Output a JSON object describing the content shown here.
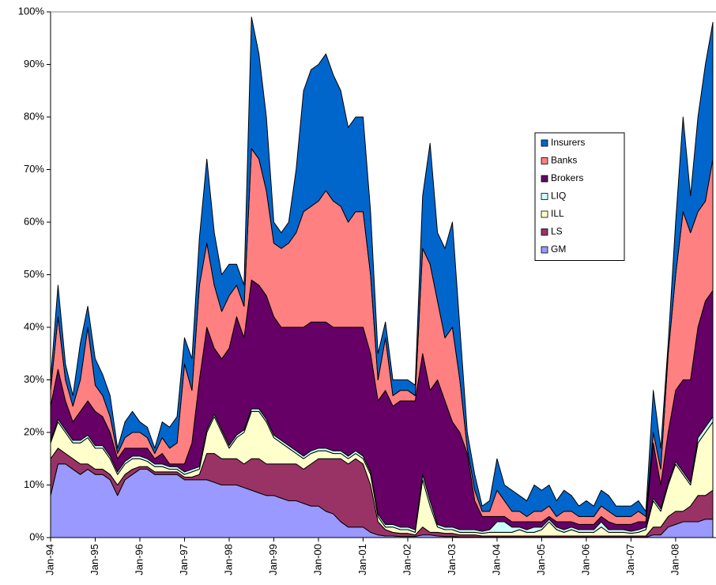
{
  "chart_data": {
    "type": "stacked_area",
    "categories": [
      "Jan-94",
      null,
      null,
      null,
      null,
      null,
      "Jan-95",
      null,
      null,
      null,
      null,
      null,
      "Jan-96",
      null,
      null,
      null,
      null,
      null,
      "Jan-97",
      null,
      null,
      null,
      null,
      null,
      "Jan-98",
      null,
      null,
      null,
      null,
      null,
      "Jan-99",
      null,
      null,
      null,
      null,
      null,
      "Jan-00",
      null,
      null,
      null,
      null,
      null,
      "Jan-01",
      null,
      null,
      null,
      null,
      null,
      "Jan-02",
      null,
      null,
      null,
      null,
      null,
      "Jan-03",
      null,
      null,
      null,
      null,
      null,
      "Jan-04",
      null,
      null,
      null,
      null,
      null,
      "Jan-05",
      null,
      null,
      null,
      null,
      null,
      "Jan-06",
      null,
      null,
      null,
      null,
      null,
      "Jan-07",
      null,
      null,
      null,
      null,
      null,
      "Jan-08",
      null,
      null,
      null,
      null,
      null
    ],
    "series": [
      {
        "name": "GM",
        "color": "#9999ff",
        "values": [
          8,
          14,
          14,
          13,
          12,
          13,
          12,
          12,
          11,
          8,
          11,
          12,
          13,
          13,
          12,
          12,
          12,
          12,
          11,
          11,
          11,
          11,
          10.5,
          10,
          10,
          10,
          9.5,
          9,
          8.5,
          8,
          8,
          7.5,
          7,
          7,
          6.5,
          6,
          6,
          5,
          4.5,
          3,
          2,
          2,
          2,
          1,
          0.5,
          0.3,
          0.3,
          0.2,
          0.2,
          0.2,
          0.5,
          0.5,
          0.3,
          0.2,
          0.2,
          0.1,
          0.1,
          0.1,
          0.1,
          0.1,
          0.1,
          0.1,
          0.1,
          0.1,
          0.1,
          0.1,
          0.1,
          0.1,
          0.1,
          0.1,
          0.1,
          0.1,
          0.1,
          0.1,
          0.1,
          0.1,
          0.1,
          0.1,
          0.1,
          0.1,
          0.1,
          0.5,
          0.5,
          2,
          2.5,
          3,
          3,
          3,
          3.5,
          3.5
        ]
      },
      {
        "name": "LS",
        "color": "#993366",
        "values": [
          7,
          3,
          2,
          2,
          2,
          1,
          1,
          1,
          1,
          2,
          1,
          1,
          0.5,
          0.5,
          0.5,
          0.5,
          0.5,
          0.5,
          0.5,
          0.5,
          1,
          5,
          5.5,
          5,
          5,
          5,
          4.5,
          6,
          6.5,
          6,
          6,
          6.5,
          7,
          7,
          6.5,
          8,
          9,
          10,
          10.5,
          12,
          12,
          13,
          12,
          9,
          2.5,
          1.2,
          0.7,
          0.6,
          0.6,
          0.3,
          1.5,
          0.5,
          0.7,
          0.6,
          0.6,
          0.4,
          0.4,
          0.4,
          0.2,
          0.2,
          0.2,
          0.2,
          0.2,
          0.2,
          0.2,
          0.2,
          0.2,
          0.2,
          0.2,
          0.2,
          0.2,
          0.2,
          0.2,
          0.2,
          0.2,
          0.2,
          0.2,
          0.2,
          0.2,
          0.2,
          0.2,
          1.5,
          1.5,
          2,
          2.5,
          2,
          3,
          5,
          4.5,
          5.5
        ]
      },
      {
        "name": "ILL",
        "color": "#ffffcc",
        "values": [
          3,
          5,
          4,
          3,
          4,
          5,
          4,
          4,
          3,
          2,
          2,
          2,
          1.5,
          1,
          1,
          1,
          0.5,
          0.5,
          0.5,
          1,
          1,
          4,
          7,
          5,
          2,
          4,
          6,
          9,
          9,
          8,
          5,
          4,
          3,
          2,
          2,
          2,
          1.5,
          1.5,
          1,
          1,
          1,
          1,
          1,
          2,
          1,
          0.5,
          1,
          0.7,
          0.7,
          0.5,
          9,
          5,
          1,
          0.7,
          0.7,
          0.5,
          0.5,
          0.5,
          0.5,
          0.7,
          0.7,
          0.7,
          0.7,
          1.2,
          0.7,
          0.7,
          1.2,
          2.7,
          1.2,
          0.7,
          1.2,
          0.7,
          0.7,
          0.7,
          1.7,
          0.7,
          0.7,
          0.7,
          0.5,
          0.7,
          1.2,
          5,
          3,
          6,
          9,
          7,
          4,
          10,
          12,
          13
        ]
      },
      {
        "name": "LIQ",
        "color": "#ccffff",
        "values": [
          0.5,
          0.5,
          0.5,
          0.5,
          0.5,
          0.5,
          0.5,
          0.5,
          0.5,
          0.5,
          0.5,
          0.5,
          0.5,
          0.5,
          0.5,
          0.5,
          0.5,
          0.5,
          0.5,
          0.5,
          0.5,
          0.5,
          0.5,
          0.5,
          0.5,
          0.5,
          0.5,
          0.5,
          0.5,
          0.5,
          0.5,
          0.5,
          0.5,
          0.5,
          0.5,
          0.5,
          0.5,
          0.5,
          0.5,
          0.5,
          0.5,
          0.5,
          0.5,
          0.5,
          0.5,
          0.5,
          0.5,
          0.5,
          0.5,
          0.5,
          1,
          1,
          0.5,
          0.5,
          0.5,
          0.5,
          0.5,
          0.5,
          0.4,
          0.5,
          2,
          2,
          1,
          0.5,
          0.5,
          1,
          0.5,
          0.5,
          0.5,
          0.5,
          0.5,
          0.5,
          0.5,
          0.5,
          1,
          0.5,
          0.5,
          0.5,
          0.4,
          0.5,
          0.5,
          0.5,
          0.5,
          0.5,
          0.5,
          0.5,
          0.5,
          1,
          1,
          1
        ]
      },
      {
        "name": "Brokers",
        "color": "#660066",
        "values": [
          6.5,
          9.5,
          5.5,
          3.5,
          5.5,
          6.5,
          6.5,
          5.5,
          4.5,
          2.5,
          2.5,
          1.5,
          1.5,
          2,
          1,
          2,
          0.5,
          0.5,
          1.5,
          5,
          16.5,
          19.5,
          12.5,
          13.5,
          18.5,
          22.5,
          17.5,
          24.5,
          23.5,
          23.5,
          22.5,
          21.5,
          22.5,
          23.5,
          24.5,
          24.5,
          24,
          24,
          23.5,
          23.5,
          24.5,
          23.5,
          24.5,
          22.5,
          21.5,
          25.5,
          22.5,
          24,
          24,
          24.5,
          23,
          21,
          27.5,
          24,
          20,
          18.5,
          14.5,
          5.5,
          2.8,
          2.5,
          1,
          1,
          1,
          1,
          1.5,
          1,
          1,
          0.5,
          1,
          1.5,
          1,
          1,
          1,
          1,
          1,
          1.5,
          1,
          1,
          1.3,
          1.5,
          1,
          10.5,
          4.5,
          9.5,
          13.5,
          17.5,
          19.5,
          21,
          24,
          24
        ]
      },
      {
        "name": "Banks",
        "color": "#ff8080",
        "values": [
          3,
          10,
          4,
          3,
          6,
          14,
          5,
          4,
          3,
          1,
          2,
          3,
          3,
          2,
          1,
          3,
          3,
          4,
          19,
          10,
          18,
          16,
          12,
          9,
          10,
          6,
          6,
          25,
          24,
          20,
          14,
          15,
          16,
          18,
          22,
          22,
          23,
          25,
          24,
          23,
          20,
          22,
          22,
          15,
          4,
          10,
          2,
          2,
          2,
          1,
          20,
          24,
          15,
          12,
          18,
          10,
          1,
          2,
          1,
          1,
          5,
          3,
          2,
          2,
          1,
          2,
          2,
          2,
          1,
          2,
          2,
          1.5,
          1.5,
          1.5,
          2,
          2,
          1.5,
          1.5,
          1.5,
          2,
          1,
          2,
          3,
          15,
          22,
          32,
          28,
          22,
          19,
          25
        ]
      },
      {
        "name": "Insurers",
        "color": "#0066cc",
        "values": [
          2,
          6,
          3,
          2,
          7,
          4,
          5,
          4,
          4,
          1,
          3,
          4,
          2,
          2,
          1,
          3,
          4,
          5,
          5,
          6,
          9,
          16,
          10,
          7,
          6,
          4,
          4,
          25,
          20,
          14,
          4,
          3,
          4,
          12,
          23,
          26,
          26,
          26,
          24,
          22,
          18,
          18,
          18,
          12,
          5,
          3,
          3,
          2,
          2,
          2,
          10,
          23,
          13,
          17,
          20,
          10,
          3,
          3,
          1,
          2,
          6,
          3,
          4,
          3,
          3,
          5,
          4,
          4,
          3,
          4,
          3,
          2,
          3,
          2,
          3,
          3,
          2,
          2,
          2,
          2,
          1,
          8,
          4,
          2,
          10,
          18,
          7,
          18,
          26,
          26
        ]
      }
    ],
    "ylim": [
      0,
      100
    ],
    "yticks": [
      {
        "value": 0,
        "label": "0%"
      },
      {
        "value": 10,
        "label": "10%"
      },
      {
        "value": 20,
        "label": "20%"
      },
      {
        "value": 30,
        "label": "30%"
      },
      {
        "value": 40,
        "label": "40%"
      },
      {
        "value": 50,
        "label": "50%"
      },
      {
        "value": 60,
        "label": "60%"
      },
      {
        "value": 70,
        "label": "70%"
      },
      {
        "value": 80,
        "label": "80%"
      },
      {
        "value": 90,
        "label": "90%"
      },
      {
        "value": 100,
        "label": "100%"
      }
    ],
    "grid": false,
    "legend": "right"
  }
}
